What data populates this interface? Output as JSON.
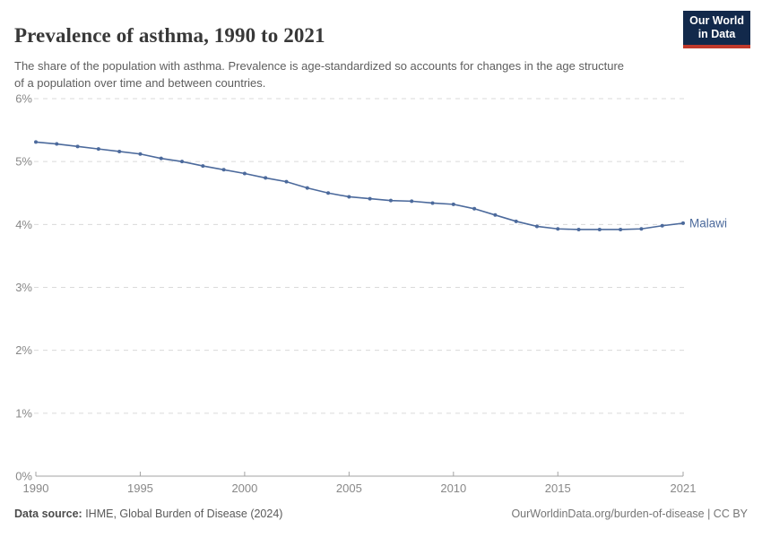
{
  "header": {
    "title": "Prevalence of asthma, 1990 to 2021",
    "subtitle": "The share of the population with asthma. Prevalence is age-standardized so accounts for changes in the age structure of a population over time and between countries.",
    "logo": {
      "line1": "Our World",
      "line2": "in Data",
      "bg_color": "#12294B",
      "accent_color": "#C0392B"
    }
  },
  "chart_data": {
    "type": "line",
    "title": "Prevalence of asthma, 1990 to 2021",
    "xlabel": "",
    "ylabel": "",
    "xlim": [
      1990,
      2021
    ],
    "ylim": [
      0,
      6
    ],
    "x_ticks": [
      1990,
      1995,
      2000,
      2005,
      2010,
      2015,
      2021
    ],
    "y_ticks": [
      0,
      1,
      2,
      3,
      4,
      5,
      6
    ],
    "y_tick_suffix": "%",
    "grid": "horizontal-dashed",
    "legend_position": "end-of-line-label",
    "series": [
      {
        "name": "Malawi",
        "color": "#4C6A9C",
        "x": [
          1990,
          1991,
          1992,
          1993,
          1994,
          1995,
          1996,
          1997,
          1998,
          1999,
          2000,
          2001,
          2002,
          2003,
          2004,
          2005,
          2006,
          2007,
          2008,
          2009,
          2010,
          2011,
          2012,
          2013,
          2014,
          2015,
          2016,
          2017,
          2018,
          2019,
          2020,
          2021
        ],
        "values": [
          5.31,
          5.28,
          5.24,
          5.2,
          5.16,
          5.12,
          5.05,
          5.0,
          4.93,
          4.87,
          4.81,
          4.74,
          4.68,
          4.58,
          4.5,
          4.44,
          4.41,
          4.38,
          4.37,
          4.34,
          4.32,
          4.25,
          4.15,
          4.05,
          3.97,
          3.93,
          3.92,
          3.92,
          3.92,
          3.93,
          3.98,
          4.02
        ]
      }
    ]
  },
  "footer": {
    "source_label": "Data source:",
    "source_text": " IHME, Global Burden of Disease (2024)",
    "credit": "OurWorldinData.org/burden-of-disease | CC BY"
  },
  "colors": {
    "series_blue": "#4C6A9C",
    "title_text": "#383838",
    "subtitle_text": "#5e5e5e",
    "axis_text": "#888888",
    "gridline": "#dadada",
    "axis_line": "#a3a3a3",
    "logo_navy": "#12294B",
    "logo_red": "#C0392B"
  }
}
